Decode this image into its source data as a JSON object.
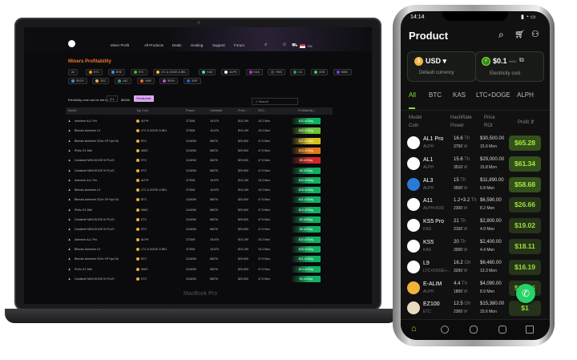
{
  "laptop": {
    "brand": "MacBook Pro",
    "nav": [
      "Miner Profit",
      "All Products",
      "Deals",
      "Hosting",
      "Support",
      "Forum"
    ],
    "lang": "EN",
    "title": "Miners Profitability",
    "coin_filters": [
      [
        "All",
        ""
      ],
      [
        "BTC",
        "#f7931a"
      ],
      [
        "BHD",
        "#3d8fe0"
      ],
      [
        "ETC",
        "#3ab83a"
      ],
      [
        "LTC & DOGE & BEL",
        "#e8c13a"
      ],
      [
        "KAS",
        "#49d6c6"
      ],
      [
        "ALPH",
        "#ffffff"
      ],
      [
        "KDA",
        "#c02bd6"
      ],
      [
        "HNS",
        "#444"
      ],
      [
        "DC",
        "#2a9a6a"
      ],
      [
        "CKB",
        "#3acc6a"
      ],
      [
        "MWC",
        "#7a3ae0"
      ],
      [
        "SKOY",
        "#3d8fe0"
      ],
      [
        "ZEC",
        "#e8b13a"
      ],
      [
        "LBC",
        "#2a9a7a"
      ],
      [
        "XMR",
        "#f26822"
      ],
      [
        "IRON",
        "#c04ae0"
      ],
      [
        "SOP",
        "#2a5ae0"
      ]
    ],
    "electricity_label": "Electricity cost can be set to",
    "electricity_value": "0.1",
    "electricity_unit": "$/kWh",
    "recalculate": "Recalculate",
    "search_placeholder": "Search",
    "columns": [
      "Model",
      "Top Coin",
      "Power",
      "Hashrate",
      "Price ↑",
      "ROI ↓",
      "Profitability ↓"
    ],
    "rows": [
      {
        "model": "Antminer AL1 Pro",
        "coin": "ALPH",
        "power": "3730W",
        "hashrate": "16.6Th",
        "price": "$10,199",
        "roi": "15.3 Mon",
        "profit": "$32.42/Day",
        "color": "#10b060"
      },
      {
        "model": "Bitmain Antminer L9",
        "coin": "LTC & DOGE & BEL",
        "power": "3730W",
        "hashrate": "16.6Th",
        "price": "$10,199",
        "roi": "15.3 Mon",
        "profit": "$25.42/Day",
        "color": "#6cc23a"
      },
      {
        "model": "Bitmain Antminer S21e XP Hyd 3U",
        "coin": "BTC",
        "power": "11160W",
        "hashrate": "860Th",
        "price": "$29,500",
        "roi": "47.5 Mon",
        "profit": "$21.42/Day",
        "color": "#d8c020"
      },
      {
        "model": "iPollo G1 Mini",
        "coin": "MWC",
        "power": "11160W",
        "hashrate": "860Th",
        "price": "$29,500",
        "roi": "47.5 Mon",
        "profit": "$10.42/Day",
        "color": "#e07a18"
      },
      {
        "model": "Goldshell MINI DOGE III PLUS",
        "coin": "ETC",
        "power": "11160W",
        "hashrate": "860Th",
        "price": "$29,500",
        "roi": "47.5 Mon",
        "profit": "$0.42/Day",
        "color": "#d02828"
      },
      {
        "model": "Goldshell MINI DOGE III PLUS",
        "coin": "ETC",
        "power": "11160W",
        "hashrate": "860Th",
        "price": "$29,500",
        "roi": "47.5 Mon",
        "profit": "$0.42/Day",
        "color": "#10b060"
      },
      {
        "model": "Antminer AL1 Pro",
        "coin": "ALPH",
        "power": "3730W",
        "hashrate": "16.6Th",
        "price": "$10,199",
        "roi": "15.3 Mon",
        "profit": "$32.42/Day",
        "color": "#10b060"
      },
      {
        "model": "Bitmain Antminer L9",
        "coin": "LTC & DOGE & BEL",
        "power": "3730W",
        "hashrate": "16.6Th",
        "price": "$10,199",
        "roi": "15.3 Mon",
        "profit": "$25.42/Day",
        "color": "#10b060"
      },
      {
        "model": "Bitmain Antminer S21e XP Hyd 3U",
        "coin": "BTC",
        "power": "11160W",
        "hashrate": "860Th",
        "price": "$29,500",
        "roi": "47.5 Mon",
        "profit": "$21.42/Day",
        "color": "#10b060"
      },
      {
        "model": "iPollo G1 Mini",
        "coin": "MWC",
        "power": "11160W",
        "hashrate": "860Th",
        "price": "$29,500",
        "roi": "47.5 Mon",
        "profit": "$10.42/Day",
        "color": "#10b060"
      },
      {
        "model": "Goldshell MINI DOGE III PLUS",
        "coin": "ETC",
        "power": "11160W",
        "hashrate": "860Th",
        "price": "$29,500",
        "roi": "47.5 Mon",
        "profit": "$0.42/Day",
        "color": "#10b060"
      },
      {
        "model": "Goldshell MINI DOGE III PLUS",
        "coin": "ETC",
        "power": "11160W",
        "hashrate": "860Th",
        "price": "$29,500",
        "roi": "47.5 Mon",
        "profit": "$0.42/Day",
        "color": "#10b060"
      },
      {
        "model": "Antminer AL1 Pro",
        "coin": "ALPH",
        "power": "3730W",
        "hashrate": "16.6Th",
        "price": "$10,199",
        "roi": "15.3 Mon",
        "profit": "$32.42/Day",
        "color": "#10b060"
      },
      {
        "model": "Bitmain Antminer L9",
        "coin": "LTC & DOGE & BEL",
        "power": "3730W",
        "hashrate": "16.6Th",
        "price": "$10,199",
        "roi": "15.3 Mon",
        "profit": "$25.42/Day",
        "color": "#10b060"
      },
      {
        "model": "Bitmain Antminer S21e XP Hyd 3U",
        "coin": "BTC",
        "power": "11160W",
        "hashrate": "860Th",
        "price": "$29,500",
        "roi": "47.5 Mon",
        "profit": "$21.42/Day",
        "color": "#10b060"
      },
      {
        "model": "iPollo G1 Mini",
        "coin": "MWC",
        "power": "11160W",
        "hashrate": "860Th",
        "price": "$29,500",
        "roi": "47.5 Mon",
        "profit": "$10.42/Day",
        "color": "#10b060"
      },
      {
        "model": "Goldshell MINI DOGE III PLUS",
        "coin": "ETC",
        "power": "11160W",
        "hashrate": "860Th",
        "price": "$29,500",
        "roi": "47.5 Mon",
        "profit": "$0.42/Day",
        "color": "#10b060"
      }
    ]
  },
  "phone": {
    "time": "14:14",
    "title": "Product",
    "currency": {
      "value": "USD ▾",
      "label": "Default currency"
    },
    "electricity": {
      "value": "$0.1",
      "unit": "/kWh",
      "label": "Electricity cost"
    },
    "tabs": [
      "All",
      "BTC",
      "KAS",
      "LTC+DOGE",
      "ALPH"
    ],
    "headers": {
      "model": "Model",
      "coin": "Coin",
      "hashrate": "HashRate",
      "power": "Power",
      "price": "Price",
      "roi": "ROI",
      "profit": "Profit ⇵"
    },
    "accent": "#8be02e",
    "rows": [
      {
        "name": "AL1 Pro",
        "coin": "ALPH",
        "hash": "16.6",
        "hu": "Th",
        "power": "3750",
        "price": "$30,500.00",
        "roi": "15.6 Mon",
        "profit": "$65.28"
      },
      {
        "name": "AL1",
        "coin": "ALPH",
        "hash": "15.6",
        "hu": "Th",
        "power": "3510",
        "price": "$29,000.00",
        "roi": "15.8 Mon",
        "profit": "$61.34"
      },
      {
        "name": "AL3",
        "coin": "ALPH",
        "hash": "15",
        "hu": "Th",
        "power": "3500",
        "price": "$11,890.00",
        "roi": "6.8 Mon",
        "profit": "$58.68"
      },
      {
        "name": "A11",
        "coin": "ALPH+RXD",
        "hash": "1.2+3.2",
        "hu": "Th",
        "power": "2300",
        "price": "$6,590.00",
        "roi": "8.2 Mon",
        "profit": "$26.66"
      },
      {
        "name": "KS5 Pro",
        "coin": "KAS",
        "hash": "21",
        "hu": "Th",
        "power": "3150",
        "price": "$2,800.00",
        "roi": "4.9 Mon",
        "profit": "$19.02"
      },
      {
        "name": "KS5",
        "coin": "KAS",
        "hash": "20",
        "hu": "Th",
        "power": "3000",
        "price": "$2,400.00",
        "roi": "4.4 Mon",
        "profit": "$18.11"
      },
      {
        "name": "L9",
        "coin": "LTC+DOGE+...",
        "hash": "16.2",
        "hu": "Gh",
        "power": "3260",
        "price": "$6,480.00",
        "roi": "13.3 Mon",
        "profit": "$16.19"
      },
      {
        "name": "E-ALIM",
        "coin": "ALPH",
        "hash": "4.4",
        "hu": "Th",
        "power": "1800",
        "price": "$4,090.00",
        "roi": "8.9 Mon",
        "profit": "$15.36"
      },
      {
        "name": "EZ100",
        "coin": "ETC",
        "hash": "12.5",
        "hu": "Gh",
        "power": "2300",
        "price": "$15,380.00",
        "roi": "33.6 Mon",
        "profit": "$1"
      }
    ],
    "power_unit": "W"
  }
}
